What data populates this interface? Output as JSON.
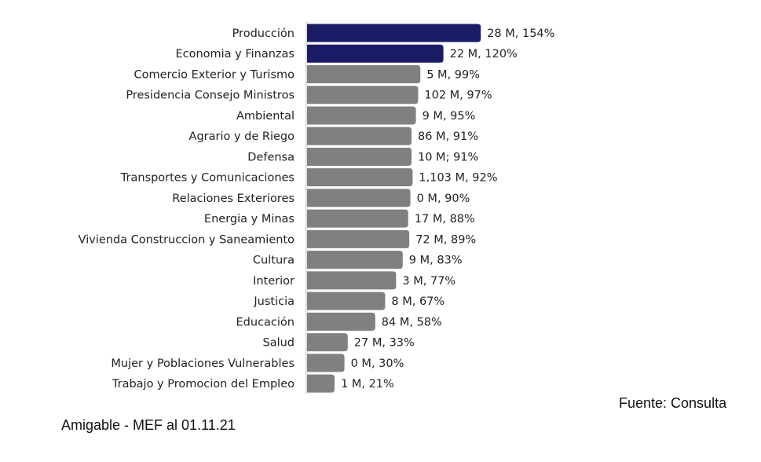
{
  "chart_data": {
    "type": "bar",
    "orientation": "horizontal",
    "title": "",
    "xlabel": "",
    "ylabel": "",
    "categories": [
      "Producción",
      "Economia y Finanzas",
      "Comercio Exterior y Turismo",
      "Presidencia Consejo Ministros",
      "Ambiental",
      "Agrario y de Riego",
      "Defensa",
      "Transportes y Comunicaciones",
      "Relaciones Exteriores",
      "Energia y Minas",
      "Vivienda Construccion y Saneamiento",
      "Cultura",
      "Interior",
      "Justicia",
      "Educación",
      "Salud",
      "Mujer y Poblaciones Vulnerables",
      "Trabajo y Promocion del Empleo"
    ],
    "values": [
      154,
      120,
      99,
      97,
      95,
      91,
      91,
      92,
      90,
      88,
      89,
      83,
      77,
      67,
      58,
      33,
      30,
      21
    ],
    "amounts_millions": [
      28,
      22,
      5,
      102,
      9,
      86,
      10,
      1103,
      0,
      17,
      72,
      9,
      3,
      8,
      84,
      27,
      0,
      1
    ],
    "data_labels": [
      "28 M, 154%",
      "22 M, 120%",
      "5 M, 99%",
      "102 M, 97%",
      "9 M, 95%",
      "86 M, 91%",
      "10 M; 91%",
      "1,103 M, 92%",
      "0 M, 90%",
      "17 M, 88%",
      "72 M, 89%",
      "9 M, 83%",
      "3 M, 77%",
      "8 M, 67%",
      "84 M, 58%",
      "27 M, 33%",
      "0 M, 30%",
      "1 M, 21%"
    ],
    "highlight_colors": [
      "#1b1c66",
      "#1b1c66",
      "#808080",
      "#808080",
      "#808080",
      "#808080",
      "#808080",
      "#808080",
      "#808080",
      "#808080",
      "#808080",
      "#808080",
      "#808080",
      "#808080",
      "#808080",
      "#808080",
      "#808080",
      "#808080"
    ],
    "axis_color": "#d0d0d0",
    "grid": false,
    "legend": "none"
  },
  "source": "Fuente: Consulta",
  "footer": "Amigable - MEF al 01.11.21"
}
